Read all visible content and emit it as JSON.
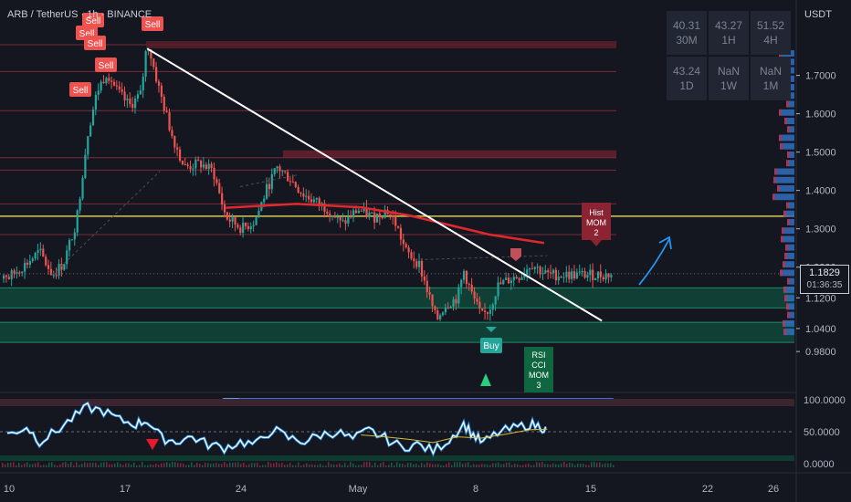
{
  "header": {
    "symbol": "ARB / TetherUS · 1h · BINANCE"
  },
  "axis_currency": "USDT",
  "price_tag": {
    "price": "1.1829",
    "countdown": "01:36:35"
  },
  "tf_table": [
    {
      "value": "40.31",
      "tf": "30M"
    },
    {
      "value": "43.27",
      "tf": "1H"
    },
    {
      "value": "51.52",
      "tf": "4H"
    },
    {
      "value": "43.24",
      "tf": "1D"
    },
    {
      "value": "NaN",
      "tf": "1W"
    },
    {
      "value": "NaN",
      "tf": "1M"
    }
  ],
  "signals": {
    "sell_labels": [
      "Sell",
      "Sell",
      "Sell",
      "Sell",
      "Sell",
      "Sell"
    ],
    "buy_label": "Buy",
    "hist_box": [
      "Hist",
      "MOM",
      "2"
    ],
    "rsi_box": [
      "RSI",
      "CCI",
      "MOM",
      "3"
    ]
  },
  "colors": {
    "background": "#141720",
    "bull": "#26a69a",
    "bear": "#ef5350",
    "trendline": "#ffffff",
    "yellow_line": "#d8c65a",
    "ma_red": "#e0282e",
    "arrow": "#2196f3",
    "green_zone": "#0e5a44",
    "red_zone": "#5b1f2b"
  },
  "chart_data": [
    {
      "type": "candlestick",
      "xlabel": "",
      "ylabel": "",
      "x_ticks": [
        "10",
        "17",
        "24",
        "May",
        "8",
        "15",
        "22",
        "26"
      ],
      "y_ticks": [
        "1.7000",
        "1.6000",
        "1.5000",
        "1.4000",
        "1.3000",
        "1.2000",
        "1.1200",
        "1.0400",
        "0.9800"
      ],
      "ylim": [
        0.95,
        1.82
      ],
      "close_path": [
        {
          "day": 9.0,
          "price": 1.17
        },
        {
          "day": 10.2,
          "price": 1.21
        },
        {
          "day": 11.0,
          "price": 1.24
        },
        {
          "day": 11.8,
          "price": 1.18
        },
        {
          "day": 12.5,
          "price": 1.21
        },
        {
          "day": 13.3,
          "price": 1.32
        },
        {
          "day": 14.0,
          "price": 1.55
        },
        {
          "day": 14.6,
          "price": 1.66
        },
        {
          "day": 15.2,
          "price": 1.71
        },
        {
          "day": 15.8,
          "price": 1.66
        },
        {
          "day": 16.6,
          "price": 1.62
        },
        {
          "day": 17.3,
          "price": 1.65
        },
        {
          "day": 17.7,
          "price": 1.79
        },
        {
          "day": 18.4,
          "price": 1.67
        },
        {
          "day": 19.2,
          "price": 1.55
        },
        {
          "day": 20.0,
          "price": 1.46
        },
        {
          "day": 21.0,
          "price": 1.47
        },
        {
          "day": 21.8,
          "price": 1.45
        },
        {
          "day": 22.6,
          "price": 1.33
        },
        {
          "day": 23.6,
          "price": 1.3
        },
        {
          "day": 24.4,
          "price": 1.32
        },
        {
          "day": 25.2,
          "price": 1.41
        },
        {
          "day": 25.8,
          "price": 1.46
        },
        {
          "day": 26.6,
          "price": 1.43
        },
        {
          "day": 27.4,
          "price": 1.39
        },
        {
          "day": 28.2,
          "price": 1.37
        },
        {
          "day": 29.0,
          "price": 1.35
        },
        {
          "day": 29.8,
          "price": 1.31
        },
        {
          "day": 30.8,
          "price": 1.35
        },
        {
          "day": 31.8,
          "price": 1.33
        },
        {
          "day": 32.6,
          "price": 1.35
        },
        {
          "day": 33.2,
          "price": 1.31
        },
        {
          "day": 33.8,
          "price": 1.24
        },
        {
          "day": 34.6,
          "price": 1.21
        },
        {
          "day": 35.2,
          "price": 1.13
        },
        {
          "day": 35.7,
          "price": 1.06
        },
        {
          "day": 36.2,
          "price": 1.1
        },
        {
          "day": 37.0,
          "price": 1.12
        },
        {
          "day": 37.4,
          "price": 1.19
        },
        {
          "day": 37.9,
          "price": 1.13
        },
        {
          "day": 38.5,
          "price": 1.07
        },
        {
          "day": 39.0,
          "price": 1.09
        },
        {
          "day": 39.5,
          "price": 1.15
        },
        {
          "day": 40.3,
          "price": 1.17
        },
        {
          "day": 41.0,
          "price": 1.18
        },
        {
          "day": 41.6,
          "price": 1.21
        },
        {
          "day": 42.2,
          "price": 1.19
        },
        {
          "day": 42.6,
          "price": 1.18
        }
      ],
      "horizontal_levels": [
        {
          "price": 1.78,
          "kind": "resistance"
        },
        {
          "price": 1.71,
          "kind": "resistance"
        },
        {
          "price": 1.608,
          "kind": "resistance"
        },
        {
          "price": 1.495,
          "kind": "resistance_zone"
        },
        {
          "price": 1.453,
          "kind": "resistance"
        },
        {
          "price": 1.365,
          "kind": "resistance"
        },
        {
          "price": 1.333,
          "kind": "yellow"
        },
        {
          "price": 1.285,
          "kind": "resistance"
        },
        {
          "price": 1.12,
          "kind": "support_zone"
        },
        {
          "price": 1.03,
          "kind": "support_zone"
        }
      ],
      "trendline": [
        {
          "day": 17.7,
          "price": 1.77
        },
        {
          "day": 46.0,
          "price": 1.06
        }
      ],
      "moving_average": [
        {
          "day": 22.6,
          "price": 1.355
        },
        {
          "day": 27.0,
          "price": 1.365
        },
        {
          "day": 31.0,
          "price": 1.356
        },
        {
          "day": 34.0,
          "price": 1.335
        },
        {
          "day": 36.5,
          "price": 1.31
        },
        {
          "day": 39.0,
          "price": 1.285
        },
        {
          "day": 42.4,
          "price": 1.263
        }
      ]
    },
    {
      "type": "line",
      "name": "oscillator",
      "y_ticks": [
        "100.0000",
        "50.0000",
        "0.0000"
      ],
      "ylim": [
        0,
        100
      ],
      "series": [
        {
          "values": [
            [
              9.0,
              45
            ],
            [
              10.2,
              58
            ],
            [
              11.0,
              35
            ],
            [
              12.0,
              50
            ],
            [
              13.0,
              70
            ],
            [
              14.0,
              88
            ],
            [
              15.0,
              82
            ],
            [
              16.0,
              68
            ],
            [
              17.0,
              62
            ],
            [
              17.7,
              68
            ],
            [
              18.6,
              40
            ],
            [
              19.5,
              35
            ],
            [
              20.5,
              42
            ],
            [
              21.5,
              30
            ],
            [
              22.5,
              25
            ],
            [
              23.5,
              34
            ],
            [
              24.5,
              30
            ],
            [
              25.5,
              54
            ],
            [
              26.5,
              40
            ],
            [
              27.5,
              35
            ],
            [
              28.5,
              45
            ],
            [
              29.5,
              50
            ],
            [
              30.5,
              38
            ],
            [
              31.5,
              52
            ],
            [
              32.5,
              40
            ],
            [
              33.5,
              26
            ],
            [
              34.5,
              30
            ],
            [
              35.5,
              20
            ],
            [
              36.5,
              38
            ],
            [
              37.4,
              62
            ],
            [
              38.0,
              45
            ],
            [
              38.6,
              32
            ],
            [
              39.5,
              48
            ],
            [
              40.5,
              55
            ],
            [
              41.5,
              62
            ],
            [
              42.2,
              58
            ],
            [
              42.6,
              52
            ]
          ]
        }
      ],
      "signal_average": [
        [
          31.0,
          45
        ],
        [
          32.5,
          42
        ],
        [
          34.0,
          38
        ],
        [
          35.5,
          33
        ],
        [
          37.0,
          42
        ],
        [
          38.5,
          40
        ],
        [
          40.0,
          46
        ],
        [
          41.5,
          53
        ],
        [
          42.6,
          54
        ]
      ]
    }
  ]
}
